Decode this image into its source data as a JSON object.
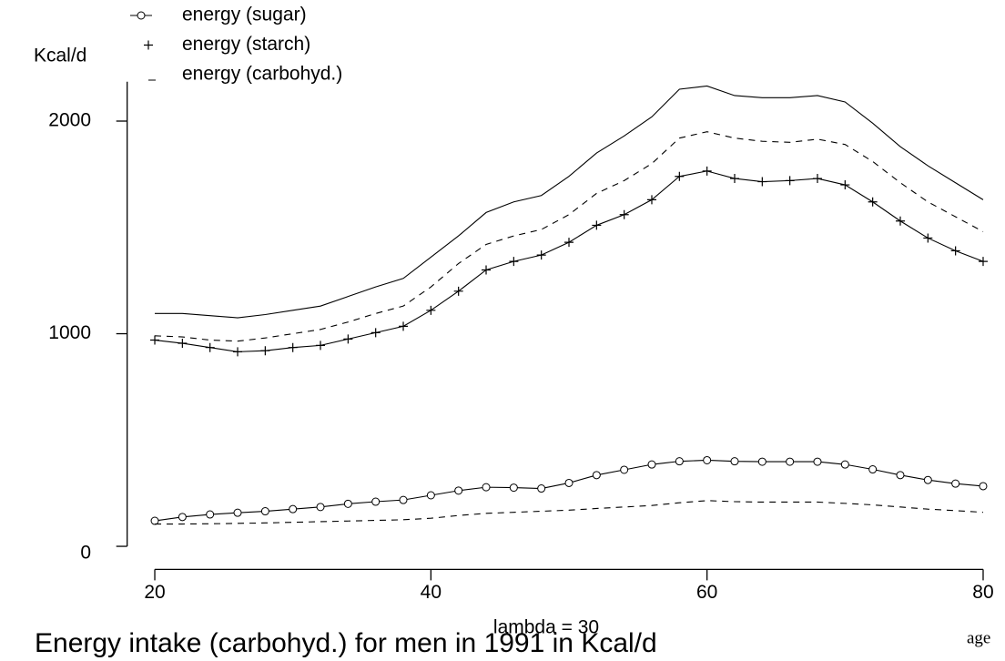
{
  "chart_data": {
    "type": "line",
    "title": "Energy intake (carbohyd.) for men in 1991 in Kcal/d",
    "subtitle": "lambda = 30",
    "x_label": "age",
    "y_label": "Kcal/d",
    "x": [
      20,
      22,
      24,
      26,
      28,
      30,
      32,
      34,
      36,
      38,
      40,
      42,
      44,
      46,
      48,
      50,
      52,
      54,
      56,
      58,
      60,
      62,
      64,
      66,
      68,
      70,
      72,
      74,
      76,
      78,
      80
    ],
    "series": [
      {
        "name": "energy (sugar)",
        "color": "#000000",
        "marker": "circle",
        "dashed": false,
        "values": [
          120,
          138,
          150,
          158,
          165,
          175,
          185,
          200,
          210,
          218,
          240,
          262,
          278,
          276,
          272,
          298,
          335,
          360,
          385,
          400,
          405,
          400,
          398,
          398,
          398,
          385,
          362,
          335,
          312,
          295,
          283
        ]
      },
      {
        "name": "energy (starch)",
        "color": "#000000",
        "marker": "plus",
        "dashed": false,
        "values": [
          970,
          955,
          935,
          915,
          920,
          935,
          945,
          975,
          1005,
          1035,
          1110,
          1200,
          1300,
          1340,
          1370,
          1430,
          1510,
          1560,
          1630,
          1740,
          1765,
          1730,
          1715,
          1720,
          1730,
          1700,
          1620,
          1530,
          1450,
          1390,
          1340
        ]
      },
      {
        "name": "energy (carbohyd.)",
        "color": "#000000",
        "marker": "dash",
        "dashed": false,
        "values": [
          1095,
          1095,
          1085,
          1075,
          1090,
          1110,
          1130,
          1175,
          1220,
          1260,
          1360,
          1460,
          1570,
          1620,
          1650,
          1740,
          1850,
          1930,
          2020,
          2150,
          2165,
          2120,
          2110,
          2110,
          2120,
          2090,
          1990,
          1880,
          1790,
          1710,
          1630
        ]
      },
      {
        "color": "#000000",
        "marker": "none",
        "dashed": true,
        "values": [
          990,
          985,
          970,
          965,
          980,
          1000,
          1020,
          1055,
          1095,
          1130,
          1220,
          1330,
          1420,
          1460,
          1490,
          1560,
          1660,
          1720,
          1800,
          1920,
          1950,
          1920,
          1905,
          1900,
          1915,
          1890,
          1810,
          1710,
          1620,
          1550,
          1480
        ]
      },
      {
        "color": "#000000",
        "marker": "none",
        "dashed": true,
        "values": [
          105,
          105,
          106,
          108,
          110,
          113,
          116,
          119,
          122,
          125,
          132,
          145,
          155,
          160,
          165,
          170,
          178,
          185,
          192,
          205,
          215,
          210,
          208,
          208,
          208,
          202,
          195,
          185,
          175,
          168,
          160
        ]
      }
    ],
    "xlim": [
      18,
      81.3
    ],
    "xticks": [
      20,
      40,
      60,
      80
    ],
    "ylim": [
      -100,
      2185
    ],
    "yticks": [
      0,
      1000,
      2000
    ],
    "grid": false,
    "legend": "top-left"
  }
}
